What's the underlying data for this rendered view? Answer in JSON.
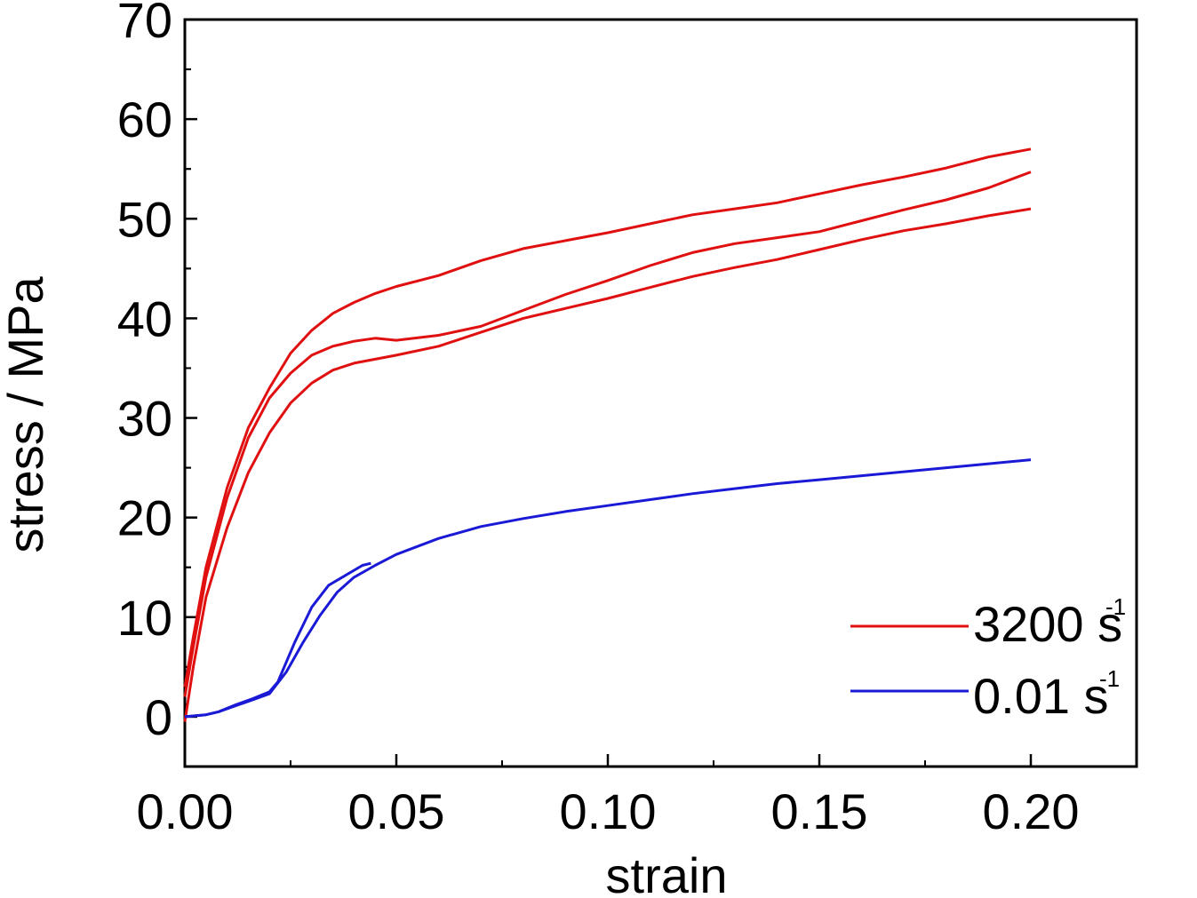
{
  "chart_data": {
    "type": "line",
    "xlabel": "strain",
    "ylabel": "stress / MPa",
    "xlim": [
      0.0,
      0.225
    ],
    "ylim": [
      -5,
      70
    ],
    "x_ticks": [
      0.0,
      0.05,
      0.1,
      0.15,
      0.2
    ],
    "x_tick_labels": [
      "0.00",
      "0.05",
      "0.10",
      "0.15",
      "0.20"
    ],
    "y_ticks": [
      0,
      10,
      20,
      30,
      40,
      50,
      60,
      70
    ],
    "y_tick_labels": [
      "0",
      "10",
      "20",
      "30",
      "40",
      "50",
      "60",
      "70"
    ],
    "grid": false,
    "legend_position": "bottom-right",
    "legend": [
      {
        "label": "3200 s",
        "superscript": "-1",
        "color": "#e01010"
      },
      {
        "label": "0.01 s",
        "superscript": "-1",
        "color": "#1a1ad6"
      }
    ],
    "series": [
      {
        "group": "3200 s-1",
        "color": "#e01010",
        "x": [
          0.0,
          0.002,
          0.005,
          0.01,
          0.015,
          0.02,
          0.025,
          0.03,
          0.035,
          0.04,
          0.045,
          0.05,
          0.06,
          0.07,
          0.08,
          0.09,
          0.1,
          0.11,
          0.12,
          0.13,
          0.14,
          0.15,
          0.16,
          0.17,
          0.18,
          0.19,
          0.2
        ],
        "y": [
          3,
          8,
          15,
          23,
          29,
          33,
          36.5,
          38.8,
          40.5,
          41.6,
          42.5,
          43.2,
          44.3,
          45.8,
          47,
          47.8,
          48.6,
          49.5,
          50.4,
          51,
          51.6,
          52.5,
          53.4,
          54.2,
          55.1,
          56.2,
          57
        ]
      },
      {
        "group": "3200 s-1",
        "color": "#e01010",
        "x": [
          0.0,
          0.002,
          0.005,
          0.01,
          0.015,
          0.02,
          0.025,
          0.03,
          0.035,
          0.04,
          0.045,
          0.05,
          0.06,
          0.07,
          0.08,
          0.09,
          0.1,
          0.11,
          0.12,
          0.13,
          0.14,
          0.15,
          0.16,
          0.17,
          0.18,
          0.19,
          0.2
        ],
        "y": [
          2,
          7,
          14,
          22,
          28,
          32,
          34.5,
          36.3,
          37.2,
          37.7,
          38,
          37.8,
          38.3,
          39.2,
          40.8,
          42.4,
          43.8,
          45.3,
          46.6,
          47.5,
          48.1,
          48.7,
          49.8,
          50.9,
          51.9,
          53.1,
          54.7
        ]
      },
      {
        "group": "3200 s-1",
        "color": "#e01010",
        "x": [
          0.0,
          0.002,
          0.005,
          0.01,
          0.015,
          0.02,
          0.025,
          0.03,
          0.035,
          0.04,
          0.045,
          0.05,
          0.06,
          0.07,
          0.08,
          0.09,
          0.1,
          0.11,
          0.12,
          0.13,
          0.14,
          0.15,
          0.16,
          0.17,
          0.18,
          0.19,
          0.2
        ],
        "y": [
          -0.5,
          5,
          12,
          19,
          24.5,
          28.5,
          31.5,
          33.5,
          34.8,
          35.5,
          35.9,
          36.3,
          37.2,
          38.6,
          40,
          41,
          42,
          43.1,
          44.2,
          45.1,
          45.9,
          46.9,
          47.9,
          48.8,
          49.5,
          50.3,
          51
        ]
      },
      {
        "group": "0.01 s-1",
        "color": "#1a1ad6",
        "x": [
          0.0,
          0.005,
          0.008,
          0.012,
          0.016,
          0.02,
          0.022,
          0.026,
          0.03,
          0.034,
          0.038,
          0.042,
          0.044
        ],
        "y": [
          0,
          0.2,
          0.5,
          1.2,
          1.8,
          2.5,
          3.5,
          7.5,
          11,
          13.2,
          14.2,
          15.2,
          15.4
        ]
      },
      {
        "group": "0.01 s-1",
        "color": "#1a1ad6",
        "x": [
          0.0,
          0.005,
          0.008,
          0.012,
          0.016,
          0.02,
          0.024,
          0.028,
          0.032,
          0.036,
          0.04,
          0.045,
          0.05,
          0.06,
          0.07,
          0.08,
          0.09,
          0.1,
          0.11,
          0.12,
          0.13,
          0.14,
          0.15,
          0.16,
          0.17,
          0.18,
          0.19,
          0.2
        ],
        "y": [
          0,
          0.2,
          0.5,
          1.1,
          1.7,
          2.3,
          4.5,
          7.5,
          10.2,
          12.5,
          14,
          15.2,
          16.3,
          17.9,
          19.1,
          19.9,
          20.6,
          21.2,
          21.8,
          22.4,
          22.9,
          23.4,
          23.8,
          24.2,
          24.6,
          25,
          25.4,
          25.8
        ]
      }
    ]
  }
}
